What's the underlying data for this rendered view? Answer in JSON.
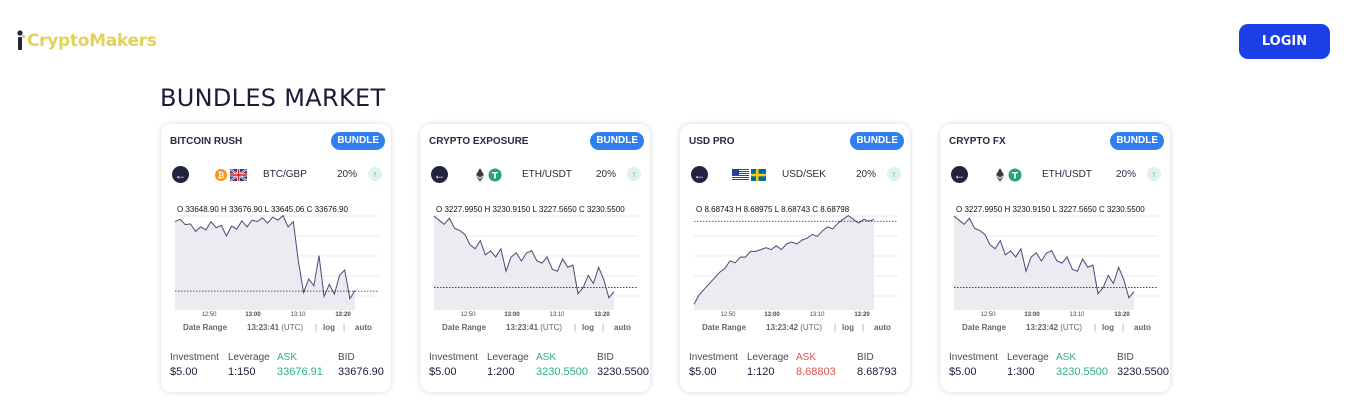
{
  "header": {
    "logo_text": "CryptoMakers",
    "login_label": "LOGIN"
  },
  "page": {
    "title": "BUNDLES MARKET"
  },
  "labels": {
    "investment": "Investment",
    "leverage": "Leverage",
    "ask": "ASK",
    "bid": "BID",
    "date_range": "Date Range",
    "log": "log",
    "auto": "auto"
  },
  "colors": {
    "accent_blue": "#1c3fe8",
    "badge_blue": "#2f7ff0",
    "ask_up_green": "#2ab27b",
    "ask_down_red": "#e0524a",
    "logo_yellow": "#e2d25a"
  },
  "cards": [
    {
      "name": "BITCOIN RUSH",
      "badge": "BUNDLE",
      "icons": [
        "bitcoin-icon",
        "uk-flag-icon"
      ],
      "pair": "BTC/GBP",
      "leverage_pct": "20%",
      "ohlc": "O 33648.90  H 33676.90  L 33645.06  C 33676.90",
      "time_ticks": [
        "12:50",
        "13:00",
        "13:10",
        "13:20"
      ],
      "time": "13:23:41",
      "tz": "(UTC)",
      "investment": "$5.00",
      "leverage": "1:150",
      "ask": "33676.91",
      "ask_dir": "up",
      "bid": "33676.90",
      "chart_data": {
        "type": "area",
        "values": [
          33668.4,
          33669.0,
          33667.6,
          33667.8,
          33665.8,
          33667.0,
          33666.2,
          33668.4,
          33666.8,
          33667.4,
          33664.6,
          33667.2,
          33666.4,
          33668.6,
          33667.0,
          33668.8,
          33668.4,
          33669.4,
          33668.0,
          33669.6,
          33668.8,
          33670.0,
          33667.0,
          33668.4,
          33657.8,
          33649.6,
          33653.2,
          33651.4,
          33659.4,
          33648.6,
          33651.8,
          33649.2,
          33654.2,
          33655.6,
          33648.0,
          33650.2
        ],
        "last_price_line": 33650.0,
        "ylim": [
          33645.0,
          33672.0
        ]
      }
    },
    {
      "name": "CRYPTO EXPOSURE",
      "badge": "BUNDLE",
      "icons": [
        "ethereum-icon",
        "tether-icon"
      ],
      "pair": "ETH/USDT",
      "leverage_pct": "20%",
      "ohlc": "O 3227.9950  H 3230.9150  L 3227.5650  C 3230.5500",
      "time_ticks": [
        "12:50",
        "13:00",
        "13:10",
        "13:20"
      ],
      "time": "13:23:41",
      "tz": "(UTC)",
      "investment": "$5.00",
      "leverage": "1:200",
      "ask": "3230.5500",
      "ask_dir": "up",
      "bid": "3230.5500",
      "chart_data": {
        "type": "area",
        "values": [
          3236.2,
          3235.8,
          3235.4,
          3236.0,
          3235.0,
          3234.8,
          3234.4,
          3233.4,
          3233.0,
          3233.8,
          3232.4,
          3232.8,
          3232.2,
          3233.0,
          3230.8,
          3232.2,
          3232.6,
          3231.8,
          3232.6,
          3232.8,
          3231.8,
          3231.6,
          3232.2,
          3231.0,
          3230.8,
          3232.0,
          3231.2,
          3231.4,
          3228.6,
          3229.2,
          3230.4,
          3229.6,
          3231.2,
          3230.0,
          3228.2,
          3228.8
        ],
        "last_price_line": 3229.2,
        "ylim": [
          3227.0,
          3237.0
        ]
      }
    },
    {
      "name": "USD PRO",
      "badge": "BUNDLE",
      "icons": [
        "usa-flag-icon",
        "sweden-flag-icon"
      ],
      "pair": "USD/SEK",
      "leverage_pct": "20%",
      "ohlc": "O 8.68743  H 8.68975  L 8.68743  C 8.68798",
      "time_ticks": [
        "12:50",
        "13:00",
        "13:10",
        "13:20"
      ],
      "time": "13:23:42",
      "tz": "(UTC)",
      "investment": "$5.00",
      "leverage": "1:120",
      "ask": "8.68803",
      "ask_dir": "down",
      "bid": "8.68793",
      "chart_data": {
        "type": "area",
        "values": [
          8.6781,
          8.6786,
          8.6789,
          8.6792,
          8.6795,
          8.6798,
          8.68,
          8.6804,
          8.6803,
          8.6806,
          8.6806,
          8.6809,
          8.6809,
          8.681,
          8.6811,
          8.681,
          8.6812,
          8.681,
          8.6813,
          8.6814,
          8.6813,
          8.6815,
          8.6816,
          8.6818,
          8.6817,
          8.682,
          8.6822,
          8.6821,
          8.6824,
          8.6826,
          8.6828,
          8.6826,
          8.6824,
          8.6826,
          8.6825,
          8.6826
        ],
        "last_price_line": 8.6825,
        "ylim": [
          8.6778,
          8.6832
        ]
      }
    },
    {
      "name": "CRYPTO FX",
      "badge": "BUNDLE",
      "icons": [
        "ethereum-icon",
        "tether-icon"
      ],
      "pair": "ETH/USDT",
      "leverage_pct": "20%",
      "ohlc": "O 3227.9950  H 3230.9150  L 3227.5650  C 3230.5500",
      "time_ticks": [
        "12:50",
        "13:00",
        "13:10",
        "13:20"
      ],
      "time": "13:23:42",
      "tz": "(UTC)",
      "investment": "$5.00",
      "leverage": "1:300",
      "ask": "3230.5500",
      "ask_dir": "up",
      "bid": "3230.5500",
      "chart_data": {
        "type": "area",
        "values": [
          3236.2,
          3235.8,
          3235.4,
          3236.0,
          3235.0,
          3234.8,
          3234.4,
          3233.4,
          3233.0,
          3233.8,
          3232.4,
          3232.8,
          3232.2,
          3233.0,
          3230.8,
          3232.2,
          3232.6,
          3231.8,
          3232.6,
          3232.8,
          3231.8,
          3231.6,
          3232.2,
          3231.0,
          3230.8,
          3232.0,
          3231.2,
          3231.4,
          3228.6,
          3229.2,
          3230.4,
          3229.6,
          3231.2,
          3230.0,
          3228.2,
          3228.8
        ],
        "last_price_line": 3229.2,
        "ylim": [
          3227.0,
          3237.0
        ]
      }
    }
  ]
}
